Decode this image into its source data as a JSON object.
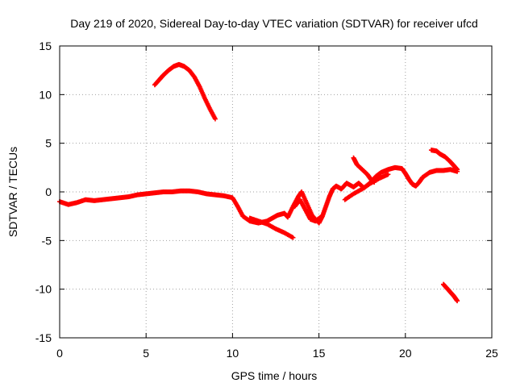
{
  "chart_data": {
    "type": "scatter",
    "title": "Day 219 of 2020, Sidereal Day-to-day VTEC variation (SDTVAR) for receiver ufcd",
    "xlabel": "GPS time / hours",
    "ylabel": "SDTVAR / TECUs",
    "xlim": [
      0,
      25
    ],
    "ylim": [
      -15,
      15
    ],
    "xticks": [
      0,
      5,
      10,
      15,
      20,
      25
    ],
    "yticks": [
      -15,
      -10,
      -5,
      0,
      5,
      10,
      15
    ],
    "grid": true,
    "series_color": "#ff0000",
    "series": [
      {
        "name": "main-trace",
        "x": [
          0.0,
          0.5,
          1.0,
          1.5,
          2.0,
          2.5,
          3.0,
          3.5,
          4.0,
          4.5,
          5.0,
          5.5,
          6.0,
          6.5,
          7.0,
          7.5,
          8.0,
          8.5,
          9.0,
          9.5,
          10.0,
          10.3,
          10.6,
          11.0,
          11.5,
          12.0,
          12.3,
          12.6,
          13.0,
          13.2,
          13.5,
          13.8,
          14.0,
          14.3,
          14.6,
          15.0,
          15.2,
          15.4,
          15.6,
          15.8,
          16.0,
          16.3,
          16.6,
          17.0,
          17.3,
          17.6,
          18.0,
          18.3,
          18.6,
          19.0,
          19.4,
          19.8,
          20.0,
          20.2,
          20.4,
          20.6,
          20.8,
          21.0,
          21.4,
          21.8,
          22.2,
          22.6,
          23.0
        ],
        "y": [
          -1.0,
          -1.3,
          -1.1,
          -0.8,
          -0.9,
          -0.8,
          -0.7,
          -0.6,
          -0.5,
          -0.3,
          -0.2,
          -0.1,
          0.0,
          0.0,
          0.1,
          0.1,
          0.0,
          -0.2,
          -0.3,
          -0.4,
          -0.6,
          -1.5,
          -2.5,
          -3.0,
          -3.2,
          -3.0,
          -2.7,
          -2.4,
          -2.2,
          -2.6,
          -1.5,
          -0.5,
          0.0,
          -1.2,
          -2.4,
          -3.2,
          -2.5,
          -1.5,
          -0.5,
          0.3,
          0.6,
          0.3,
          0.9,
          0.5,
          0.9,
          0.4,
          1.0,
          1.6,
          2.0,
          2.3,
          2.5,
          2.4,
          1.9,
          1.3,
          0.8,
          0.6,
          1.0,
          1.5,
          2.0,
          2.2,
          2.2,
          2.3,
          2.1
        ]
      },
      {
        "name": "branch-a",
        "x": [
          11.0,
          11.5,
          12.0,
          12.5,
          13.0,
          13.5
        ],
        "y": [
          -2.7,
          -3.0,
          -3.3,
          -3.8,
          -4.2,
          -4.7
        ]
      },
      {
        "name": "branch-b",
        "x": [
          13.6,
          13.9,
          14.2,
          14.5,
          14.8,
          15.1
        ],
        "y": [
          -1.5,
          -0.8,
          -1.8,
          -2.8,
          -3.0,
          -2.6
        ]
      },
      {
        "name": "branch-c",
        "x": [
          17.0,
          17.2,
          17.5,
          17.8,
          18.0,
          18.2
        ],
        "y": [
          3.5,
          2.8,
          2.3,
          1.8,
          1.3,
          1.0
        ]
      },
      {
        "name": "branch-d",
        "x": [
          16.5,
          17.0,
          17.5,
          18.0,
          18.5,
          19.0
        ],
        "y": [
          -0.8,
          -0.2,
          0.3,
          0.9,
          1.4,
          1.8
        ]
      },
      {
        "name": "branch-e",
        "x": [
          21.5,
          21.8,
          22.0,
          22.3,
          22.6,
          22.8,
          23.0
        ],
        "y": [
          4.3,
          4.2,
          3.9,
          3.6,
          3.1,
          2.7,
          2.3
        ]
      },
      {
        "name": "upper-arc",
        "x": [
          5.5,
          5.8,
          6.0,
          6.3,
          6.6,
          6.9,
          7.2,
          7.5,
          7.8,
          8.1,
          8.4,
          8.7,
          9.0
        ],
        "y": [
          11.0,
          11.6,
          12.0,
          12.5,
          12.9,
          13.1,
          12.9,
          12.5,
          11.8,
          10.8,
          9.6,
          8.5,
          7.5
        ]
      },
      {
        "name": "lower-segment",
        "x": [
          22.2,
          22.4,
          22.6,
          22.8,
          23.0
        ],
        "y": [
          -9.5,
          -9.9,
          -10.3,
          -10.7,
          -11.2
        ]
      }
    ]
  }
}
